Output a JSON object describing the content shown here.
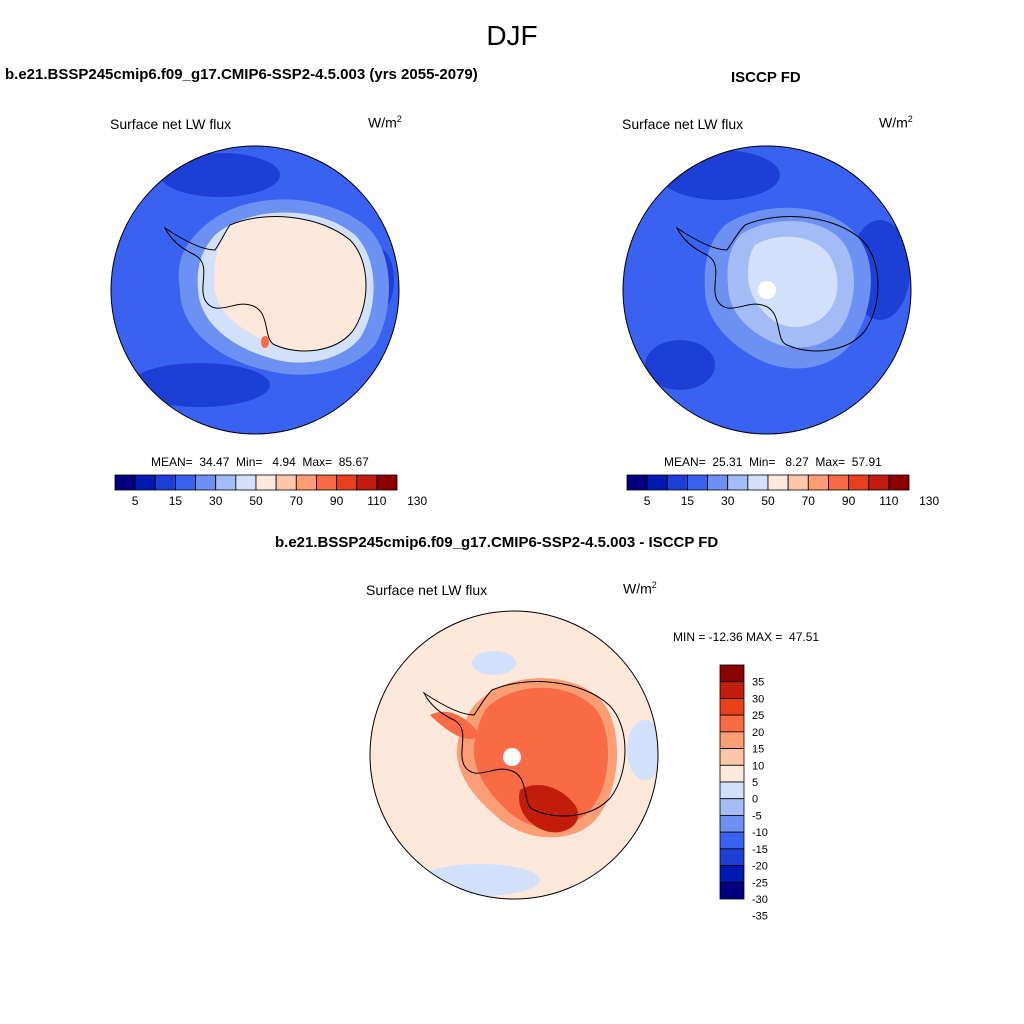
{
  "season": "DJF",
  "panels": {
    "model": {
      "title": "b.e21.BSSP245cmip6.f09_g17.CMIP6-SSP2-4.5.003 (yrs 2055-2079)",
      "variable": "Surface net LW flux",
      "units_base": "W/m",
      "units_exp": "2",
      "stats": "MEAN=  34.47  Min=   4.94  Max=  85.67"
    },
    "obs": {
      "title": "ISCCP FD",
      "variable": "Surface net LW flux",
      "units_base": "W/m",
      "units_exp": "2",
      "stats": "MEAN=  25.31  Min=   8.27  Max=  57.91"
    },
    "diff": {
      "title": "b.e21.BSSP245cmip6.f09_g17.CMIP6-SSP2-4.5.003 - ISCCP FD",
      "variable": "Surface net LW flux",
      "units_base": "W/m",
      "units_exp": "2",
      "stats": "MIN = -12.36 MAX =  47.51"
    }
  },
  "colorbars": {
    "abs": {
      "colors": [
        "#000080",
        "#0019b3",
        "#1e3fd6",
        "#3a62f0",
        "#6d90f3",
        "#a3bcf6",
        "#d2e0fb",
        "#fde8dc",
        "#fcc6a8",
        "#fb9e76",
        "#f86b44",
        "#e8401c",
        "#c21d0c",
        "#8b0000"
      ],
      "labels": [
        "5",
        "15",
        "30",
        "50",
        "70",
        "90",
        "110",
        "130"
      ]
    },
    "diff": {
      "colors": [
        "#000080",
        "#0019b3",
        "#1e3fd6",
        "#3a62f0",
        "#6d90f3",
        "#a3bcf6",
        "#d2e0fb",
        "#fde8dc",
        "#fcc6a8",
        "#fb9e76",
        "#f86b44",
        "#e8401c",
        "#c21d0c",
        "#8b0000"
      ],
      "labels": [
        "35",
        "30",
        "25",
        "20",
        "15",
        "10",
        "5",
        "0",
        "-5",
        "-10",
        "-15",
        "-20",
        "-25",
        "-30",
        "-35"
      ]
    }
  }
}
